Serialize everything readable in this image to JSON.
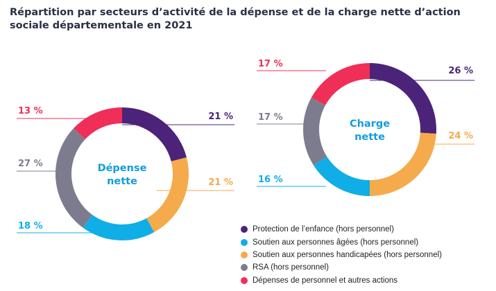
{
  "title": "Répartition par secteurs d’activité de la dépense et de la charge nette d’action sociale départementale en 2021",
  "colors": {
    "protection_enfance": "#4b2479",
    "personnes_agees": "#10aee6",
    "personnes_handicapees": "#f5aa4b",
    "rsa": "#7d7c8f",
    "personnel": "#ef2f58"
  },
  "legend": [
    {
      "label": "Protection de l’enfance (hors personnel)",
      "color_key": "protection_enfance"
    },
    {
      "label": "Soutien aux personnes âgées (hors personnel)",
      "color_key": "personnes_agees"
    },
    {
      "label": "Soutien aux personnes handicapées (hors personnel)",
      "color_key": "personnes_handicapees"
    },
    {
      "label": "RSA (hors personnel)",
      "color_key": "rsa"
    },
    {
      "label": "Dépenses de personnel et autres actions",
      "color_key": "personnel"
    }
  ],
  "chart_data": [
    {
      "type": "pie",
      "center_label": [
        "Dépense",
        "nette"
      ],
      "slices": [
        {
          "label": "21 %",
          "value": 21,
          "color_key": "protection_enfance"
        },
        {
          "label": "21 %",
          "value": 21,
          "color_key": "personnes_handicapees"
        },
        {
          "label": "18 %",
          "value": 18,
          "color_key": "personnes_agees"
        },
        {
          "label": "27 %",
          "value": 27,
          "color_key": "rsa"
        },
        {
          "label": "13 %",
          "value": 13,
          "color_key": "personnel"
        }
      ]
    },
    {
      "type": "pie",
      "center_label": [
        "Charge",
        "nette"
      ],
      "slices": [
        {
          "label": "26 %",
          "value": 26,
          "color_key": "protection_enfance"
        },
        {
          "label": "24 %",
          "value": 24,
          "color_key": "personnes_handicapees"
        },
        {
          "label": "16 %",
          "value": 16,
          "color_key": "personnes_agees"
        },
        {
          "label": "17 %",
          "value": 17,
          "color_key": "rsa"
        },
        {
          "label": "17 %",
          "value": 17,
          "color_key": "personnel"
        }
      ]
    }
  ]
}
